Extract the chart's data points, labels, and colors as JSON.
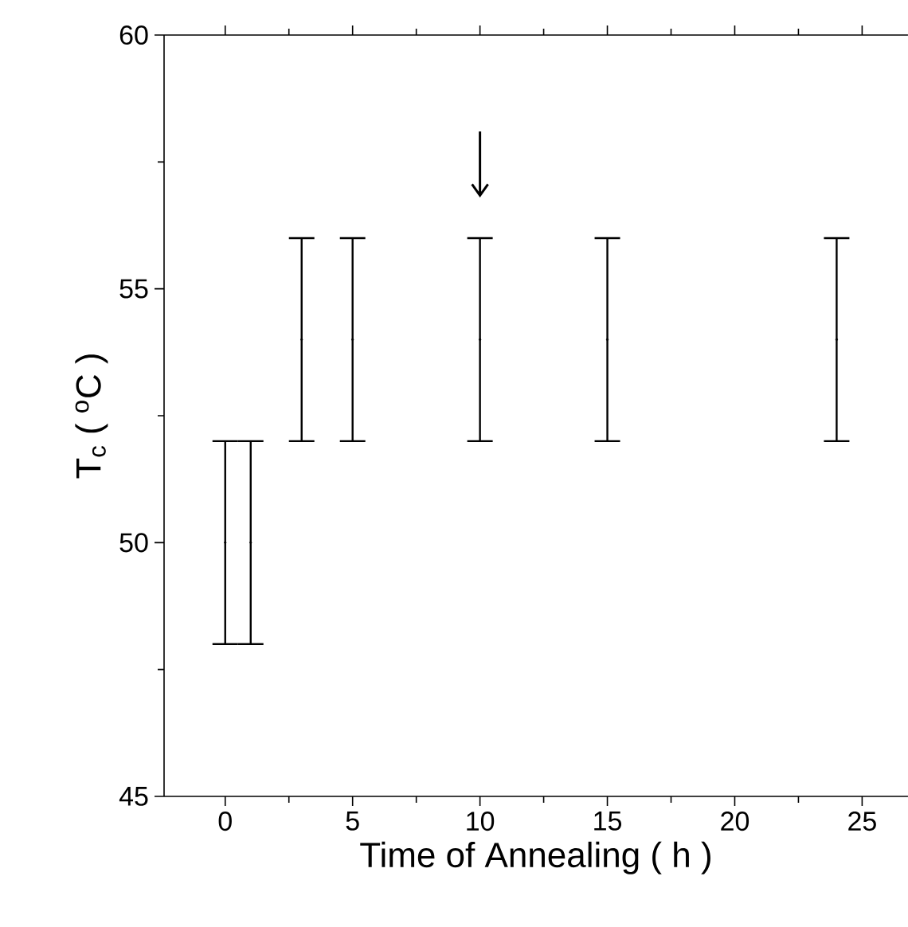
{
  "chart_data": {
    "type": "scatter",
    "xlabel": "Time of Annealing ( h )",
    "ylabel": "T$_{c}$ ( $^{o}$C )",
    "x": [
      0,
      1,
      3,
      5,
      10,
      15,
      24
    ],
    "values": [
      50,
      50,
      54,
      54,
      54,
      54,
      54
    ],
    "errors": [
      2,
      2,
      2,
      2,
      2,
      2,
      2
    ],
    "color": "#000000",
    "grid": false,
    "legend": false,
    "xlim": [
      -2.4,
      26.8
    ],
    "ylim": [
      45,
      60
    ],
    "xticks": [
      0,
      5,
      10,
      15,
      20,
      25
    ],
    "yticks": [
      45,
      50,
      55,
      60
    ]
  }
}
